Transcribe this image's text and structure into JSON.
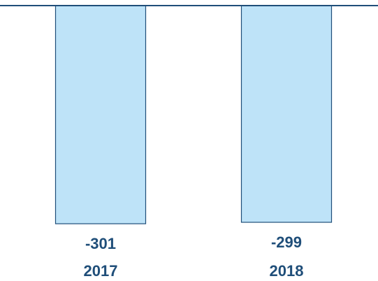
{
  "chart_data": {
    "type": "bar",
    "categories": [
      "2017",
      "2018"
    ],
    "values": [
      -301,
      -299
    ],
    "color": "#bee3f8",
    "ylim": [
      -380,
      0
    ]
  }
}
